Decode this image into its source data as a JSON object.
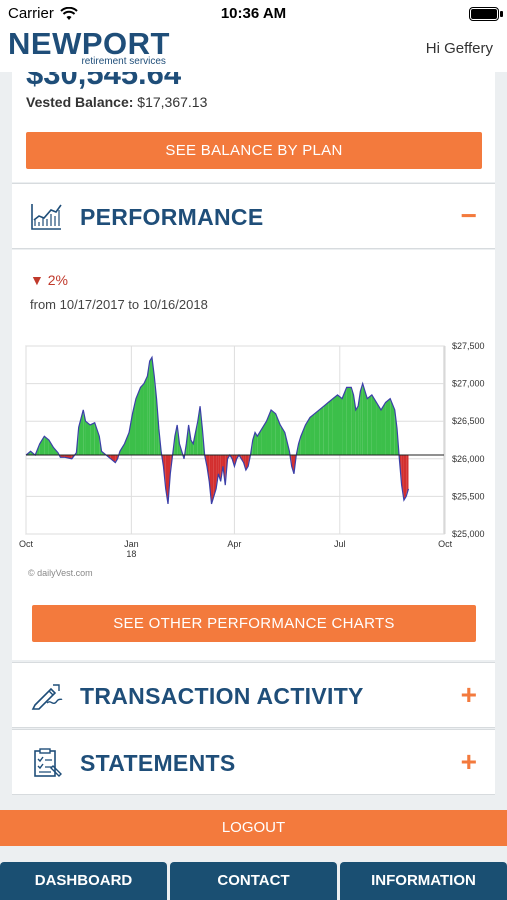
{
  "status_bar": {
    "carrier": "Carrier",
    "time": "10:36 AM"
  },
  "header": {
    "brand": "NEWPORT",
    "brand_sub": "retirement services",
    "greeting": "Hi Geffery"
  },
  "balance": {
    "total": "$30,545.64",
    "vested_label": "Vested Balance:",
    "vested_value": "$17,367.13",
    "button": "SEE BALANCE BY PLAN"
  },
  "performance": {
    "title": "PERFORMANCE",
    "toggle": "−",
    "change": "2%",
    "change_direction": "down",
    "range": "from 10/17/2017 to 10/16/2018",
    "button": "SEE OTHER PERFORMANCE CHARTS",
    "credit": "© dailyVest.com"
  },
  "chart_data": {
    "type": "area",
    "baseline": 26050,
    "ylim": [
      25000,
      27500
    ],
    "y_ticks": [
      "$27,500",
      "$27,000",
      "$26,500",
      "$26,000",
      "$25,500",
      "$25,000"
    ],
    "y_tick_values": [
      27500,
      27000,
      26500,
      26000,
      25500,
      25000
    ],
    "x_ticks": [
      "Oct",
      "Jan 18",
      "Apr",
      "Jul",
      "Oct"
    ],
    "x_tick_days": [
      0,
      92,
      182,
      274,
      366
    ],
    "x_days": 365,
    "colors": {
      "up": "#3cbf4a",
      "down": "#d32f2f",
      "line": "#3b3fa8"
    },
    "points": [
      [
        0,
        26050
      ],
      [
        4,
        26100
      ],
      [
        8,
        26050
      ],
      [
        12,
        26200
      ],
      [
        16,
        26300
      ],
      [
        20,
        26250
      ],
      [
        24,
        26150
      ],
      [
        28,
        26080
      ],
      [
        30,
        26020
      ],
      [
        34,
        26020
      ],
      [
        40,
        26000
      ],
      [
        44,
        26080
      ],
      [
        46,
        26420
      ],
      [
        50,
        26650
      ],
      [
        52,
        26500
      ],
      [
        56,
        26450
      ],
      [
        60,
        26480
      ],
      [
        64,
        26300
      ],
      [
        66,
        26100
      ],
      [
        70,
        26050
      ],
      [
        74,
        26000
      ],
      [
        78,
        25950
      ],
      [
        80,
        26000
      ],
      [
        82,
        26100
      ],
      [
        86,
        26200
      ],
      [
        90,
        26350
      ],
      [
        93,
        26600
      ],
      [
        96,
        26800
      ],
      [
        100,
        26950
      ],
      [
        103,
        27000
      ],
      [
        106,
        27100
      ],
      [
        108,
        27300
      ],
      [
        110,
        27350
      ],
      [
        112,
        27100
      ],
      [
        114,
        26800
      ],
      [
        116,
        26400
      ],
      [
        118,
        26100
      ],
      [
        120,
        25900
      ],
      [
        122,
        25600
      ],
      [
        124,
        25400
      ],
      [
        126,
        25800
      ],
      [
        128,
        26050
      ],
      [
        130,
        26300
      ],
      [
        132,
        26450
      ],
      [
        134,
        26200
      ],
      [
        136,
        26100
      ],
      [
        138,
        26000
      ],
      [
        140,
        26200
      ],
      [
        142,
        26450
      ],
      [
        144,
        26250
      ],
      [
        146,
        26200
      ],
      [
        148,
        26350
      ],
      [
        150,
        26500
      ],
      [
        152,
        26700
      ],
      [
        154,
        26400
      ],
      [
        156,
        26050
      ],
      [
        158,
        25900
      ],
      [
        160,
        25700
      ],
      [
        162,
        25400
      ],
      [
        164,
        25500
      ],
      [
        166,
        25600
      ],
      [
        168,
        25800
      ],
      [
        170,
        25700
      ],
      [
        172,
        25900
      ],
      [
        174,
        25650
      ],
      [
        176,
        26000
      ],
      [
        178,
        26050
      ],
      [
        180,
        26000
      ],
      [
        182,
        25900
      ],
      [
        184,
        26000
      ],
      [
        186,
        26050
      ],
      [
        188,
        26000
      ],
      [
        190,
        25950
      ],
      [
        192,
        25850
      ],
      [
        194,
        25900
      ],
      [
        196,
        26050
      ],
      [
        198,
        26250
      ],
      [
        200,
        26350
      ],
      [
        202,
        26300
      ],
      [
        206,
        26400
      ],
      [
        210,
        26500
      ],
      [
        214,
        26650
      ],
      [
        218,
        26600
      ],
      [
        222,
        26450
      ],
      [
        226,
        26350
      ],
      [
        230,
        26100
      ],
      [
        232,
        25900
      ],
      [
        234,
        25800
      ],
      [
        236,
        26050
      ],
      [
        238,
        26200
      ],
      [
        240,
        26300
      ],
      [
        244,
        26450
      ],
      [
        248,
        26550
      ],
      [
        252,
        26600
      ],
      [
        256,
        26650
      ],
      [
        260,
        26700
      ],
      [
        264,
        26750
      ],
      [
        268,
        26800
      ],
      [
        272,
        26850
      ],
      [
        276,
        26800
      ],
      [
        280,
        26950
      ],
      [
        284,
        26950
      ],
      [
        286,
        26850
      ],
      [
        288,
        26650
      ],
      [
        290,
        26700
      ],
      [
        292,
        26900
      ],
      [
        294,
        27000
      ],
      [
        296,
        26900
      ],
      [
        298,
        26800
      ],
      [
        302,
        26850
      ],
      [
        306,
        26750
      ],
      [
        310,
        26650
      ],
      [
        314,
        26750
      ],
      [
        318,
        26800
      ],
      [
        322,
        26650
      ],
      [
        324,
        26400
      ],
      [
        326,
        26000
      ],
      [
        328,
        25650
      ],
      [
        330,
        25450
      ],
      [
        332,
        25500
      ],
      [
        334,
        25600
      ]
    ]
  },
  "transactions": {
    "title": "TRANSACTION ACTIVITY",
    "toggle": "+"
  },
  "statements": {
    "title": "STATEMENTS",
    "toggle": "+"
  },
  "logout": "LOGOUT",
  "tabs": [
    "DASHBOARD",
    "CONTACT",
    "INFORMATION"
  ]
}
